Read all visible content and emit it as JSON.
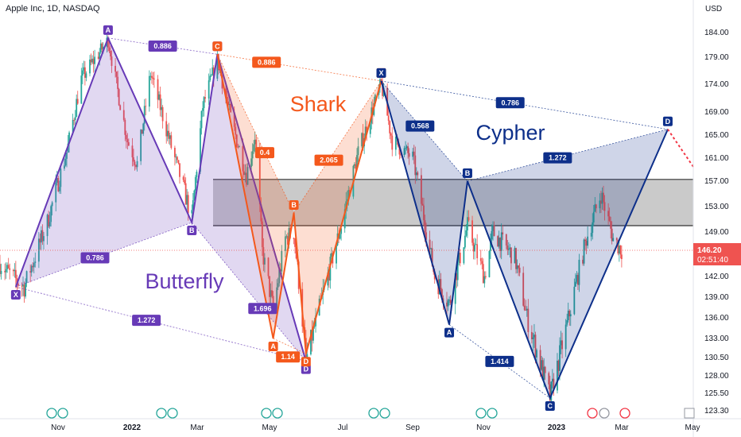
{
  "header": {
    "title": "Apple Inc, 1D, NASDAQ"
  },
  "price_axis": {
    "currency": "USD",
    "ticks": [
      "184.00",
      "179.00",
      "174.00",
      "169.00",
      "165.00",
      "161.00",
      "157.00",
      "153.00",
      "149.00",
      "146.20",
      "142.00",
      "139.00",
      "136.00",
      "133.00",
      "130.50",
      "128.00",
      "125.50",
      "123.30"
    ],
    "current_price": "146.20",
    "countdown": "02:51:40"
  },
  "time_axis": {
    "labels": [
      "Nov",
      "2022",
      "Mar",
      "May",
      "Jul",
      "Sep",
      "Nov",
      "2023",
      "Mar",
      "May"
    ]
  },
  "colors": {
    "purple": "#673ab7",
    "orange": "#f4581c",
    "navy": "#0d2f8a",
    "up": "#26a69a",
    "down": "#ef5350"
  },
  "chart_data": {
    "type": "candlestick",
    "title": "Apple Inc, 1D, NASDAQ",
    "y_unit": "USD",
    "ylim": [
      123.3,
      186.5
    ],
    "x_range": [
      "2021-10-07",
      "2023-05-01"
    ],
    "last_price": 146.2,
    "close_path": [
      [
        "2021-10-07",
        144.0
      ],
      [
        "2021-10-20",
        141.5
      ],
      [
        "2021-10-27",
        140.5
      ],
      [
        "2021-11-15",
        150.5
      ],
      [
        "2021-12-01",
        162.0
      ],
      [
        "2021-12-13",
        175.0
      ],
      [
        "2021-12-28",
        180.0
      ],
      [
        "2022-01-04",
        182.5
      ],
      [
        "2022-01-10",
        175.0
      ],
      [
        "2022-01-20",
        164.0
      ],
      [
        "2022-01-28",
        160.0
      ],
      [
        "2022-02-08",
        176.0
      ],
      [
        "2022-02-25",
        163.0
      ],
      [
        "2022-03-14",
        151.0
      ],
      [
        "2022-03-23",
        170.0
      ],
      [
        "2022-04-04",
        178.5
      ],
      [
        "2022-04-15",
        168.0
      ],
      [
        "2022-04-28",
        158.0
      ],
      [
        "2022-05-05",
        165.0
      ],
      [
        "2022-05-11",
        146.0
      ],
      [
        "2022-05-20",
        137.0
      ],
      [
        "2022-05-30",
        148.0
      ],
      [
        "2022-06-06",
        149.0
      ],
      [
        "2022-06-16",
        130.0
      ],
      [
        "2022-06-28",
        138.0
      ],
      [
        "2022-07-15",
        150.0
      ],
      [
        "2022-07-29",
        162.0
      ],
      [
        "2022-08-17",
        174.0
      ],
      [
        "2022-08-26",
        164.0
      ],
      [
        "2022-09-12",
        161.0
      ],
      [
        "2022-09-30",
        142.0
      ],
      [
        "2022-10-12",
        138.0
      ],
      [
        "2022-10-27",
        150.0
      ],
      [
        "2022-11-10",
        142.0
      ],
      [
        "2022-11-17",
        149.0
      ],
      [
        "2022-12-05",
        145.0
      ],
      [
        "2022-12-15",
        136.0
      ],
      [
        "2023-01-03",
        125.0
      ],
      [
        "2023-01-17",
        135.0
      ],
      [
        "2023-02-02",
        148.0
      ],
      [
        "2023-02-14",
        155.0
      ],
      [
        "2023-02-24",
        148.0
      ],
      [
        "2023-03-03",
        146.2
      ]
    ],
    "zone": {
      "low": 150.0,
      "high": 157.3
    },
    "patterns": [
      {
        "name": "Butterfly",
        "color": "#673ab7",
        "points": [
          {
            "label": "X",
            "date": "2021-10-20",
            "price": 140.5
          },
          {
            "label": "A",
            "date": "2022-01-04",
            "price": 182.9
          },
          {
            "label": "B",
            "date": "2022-03-14",
            "price": 150.5
          },
          {
            "label": "C",
            "date": "2022-04-04",
            "price": 179.6
          },
          {
            "label": "D",
            "date": "2022-06-16",
            "price": 130.0
          }
        ],
        "ratios": [
          "0.886",
          "0.786",
          "1.696",
          "1.272"
        ]
      },
      {
        "name": "Shark",
        "color": "#f4581c",
        "points": [
          {
            "label": "C",
            "date": "2022-04-04",
            "price": 179.6
          },
          {
            "label": "A",
            "date": "2022-05-20",
            "price": 133.0
          },
          {
            "label": "B",
            "date": "2022-06-06",
            "price": 152.0
          },
          {
            "label": "D",
            "date": "2022-06-16",
            "price": 131.0
          },
          {
            "label": "X",
            "date": "2022-08-17",
            "price": 174.6
          }
        ],
        "ratios": [
          "0.886",
          "0.4",
          "2.065",
          "1.14"
        ]
      },
      {
        "name": "Cypher",
        "color": "#0d2f8a",
        "points": [
          {
            "label": "X",
            "date": "2022-08-17",
            "price": 174.6
          },
          {
            "label": "A",
            "date": "2022-10-12",
            "price": 135.0
          },
          {
            "label": "B",
            "date": "2022-10-27",
            "price": 157.0
          },
          {
            "label": "C",
            "date": "2023-01-03",
            "price": 124.9
          },
          {
            "label": "D",
            "date": "2023-04-10",
            "price": 166.0
          }
        ],
        "ratios": [
          "0.786",
          "0.568",
          "1.272",
          "1.414"
        ]
      }
    ]
  }
}
